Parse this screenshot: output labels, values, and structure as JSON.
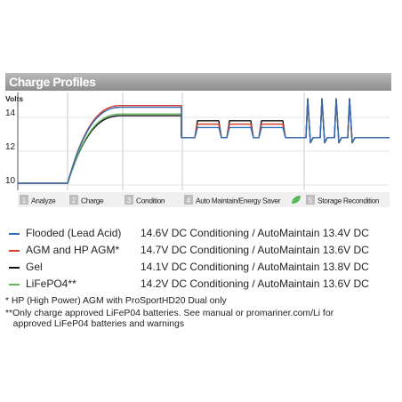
{
  "header": {
    "title": "Charge Profiles"
  },
  "chart_data": {
    "type": "line",
    "ylabel": "Volts",
    "yticks": [
      10,
      12,
      14
    ],
    "ylim": [
      9.7,
      15.2
    ],
    "phase_labels": [
      {
        "num": "1",
        "label": "Analyze"
      },
      {
        "num": "2",
        "label": "Charge"
      },
      {
        "num": "3",
        "label": "Condition"
      },
      {
        "num": "4",
        "label": "Auto Maintain/Energy Saver"
      },
      {
        "num": "5",
        "label": "Storage Recondition"
      }
    ],
    "series": [
      {
        "name": "Flooded (Lead Acid)",
        "color": "#2e6bb4",
        "conditioning": 14.6,
        "maintain": 13.4
      },
      {
        "name": "AGM and HP AGM*",
        "color": "#e03a2e",
        "conditioning": 14.7,
        "maintain": 13.6
      },
      {
        "name": "Gel",
        "color": "#111111",
        "conditioning": 14.1,
        "maintain": 13.8
      },
      {
        "name": "LiFePO4**",
        "color": "#5cb85c",
        "conditioning": 14.2,
        "maintain": 13.6
      }
    ],
    "baseline_volts": 10.1,
    "float_volts": 12.8,
    "recondition_peak_volts": 15.1,
    "grid": true
  },
  "legend": [
    {
      "name": "Flooded (Lead Acid)",
      "desc": "14.6V DC Conditioning / AutoMaintain 13.4V DC",
      "color": "#2e6bb4"
    },
    {
      "name": "AGM and HP AGM*",
      "desc": "14.7V DC Conditioning / AutoMaintain 13.6V DC",
      "color": "#e03a2e"
    },
    {
      "name": "Gel",
      "desc": "14.1V DC Conditioning / AutoMaintain 13.8V DC",
      "color": "#111111"
    },
    {
      "name": "LiFePO4**",
      "desc": "14.2V DC Conditioning / AutoMaintain 13.6V DC",
      "color": "#5cb85c"
    }
  ],
  "notes": {
    "hp": "* HP (High Power) AGM with ProSportHD20 Dual only",
    "lifepo_1": "**Only charge approved LiFeP04 batteries. See manual or promariner.com/Li for",
    "lifepo_2": "   approved LiFeP04 batteries and warnings"
  }
}
